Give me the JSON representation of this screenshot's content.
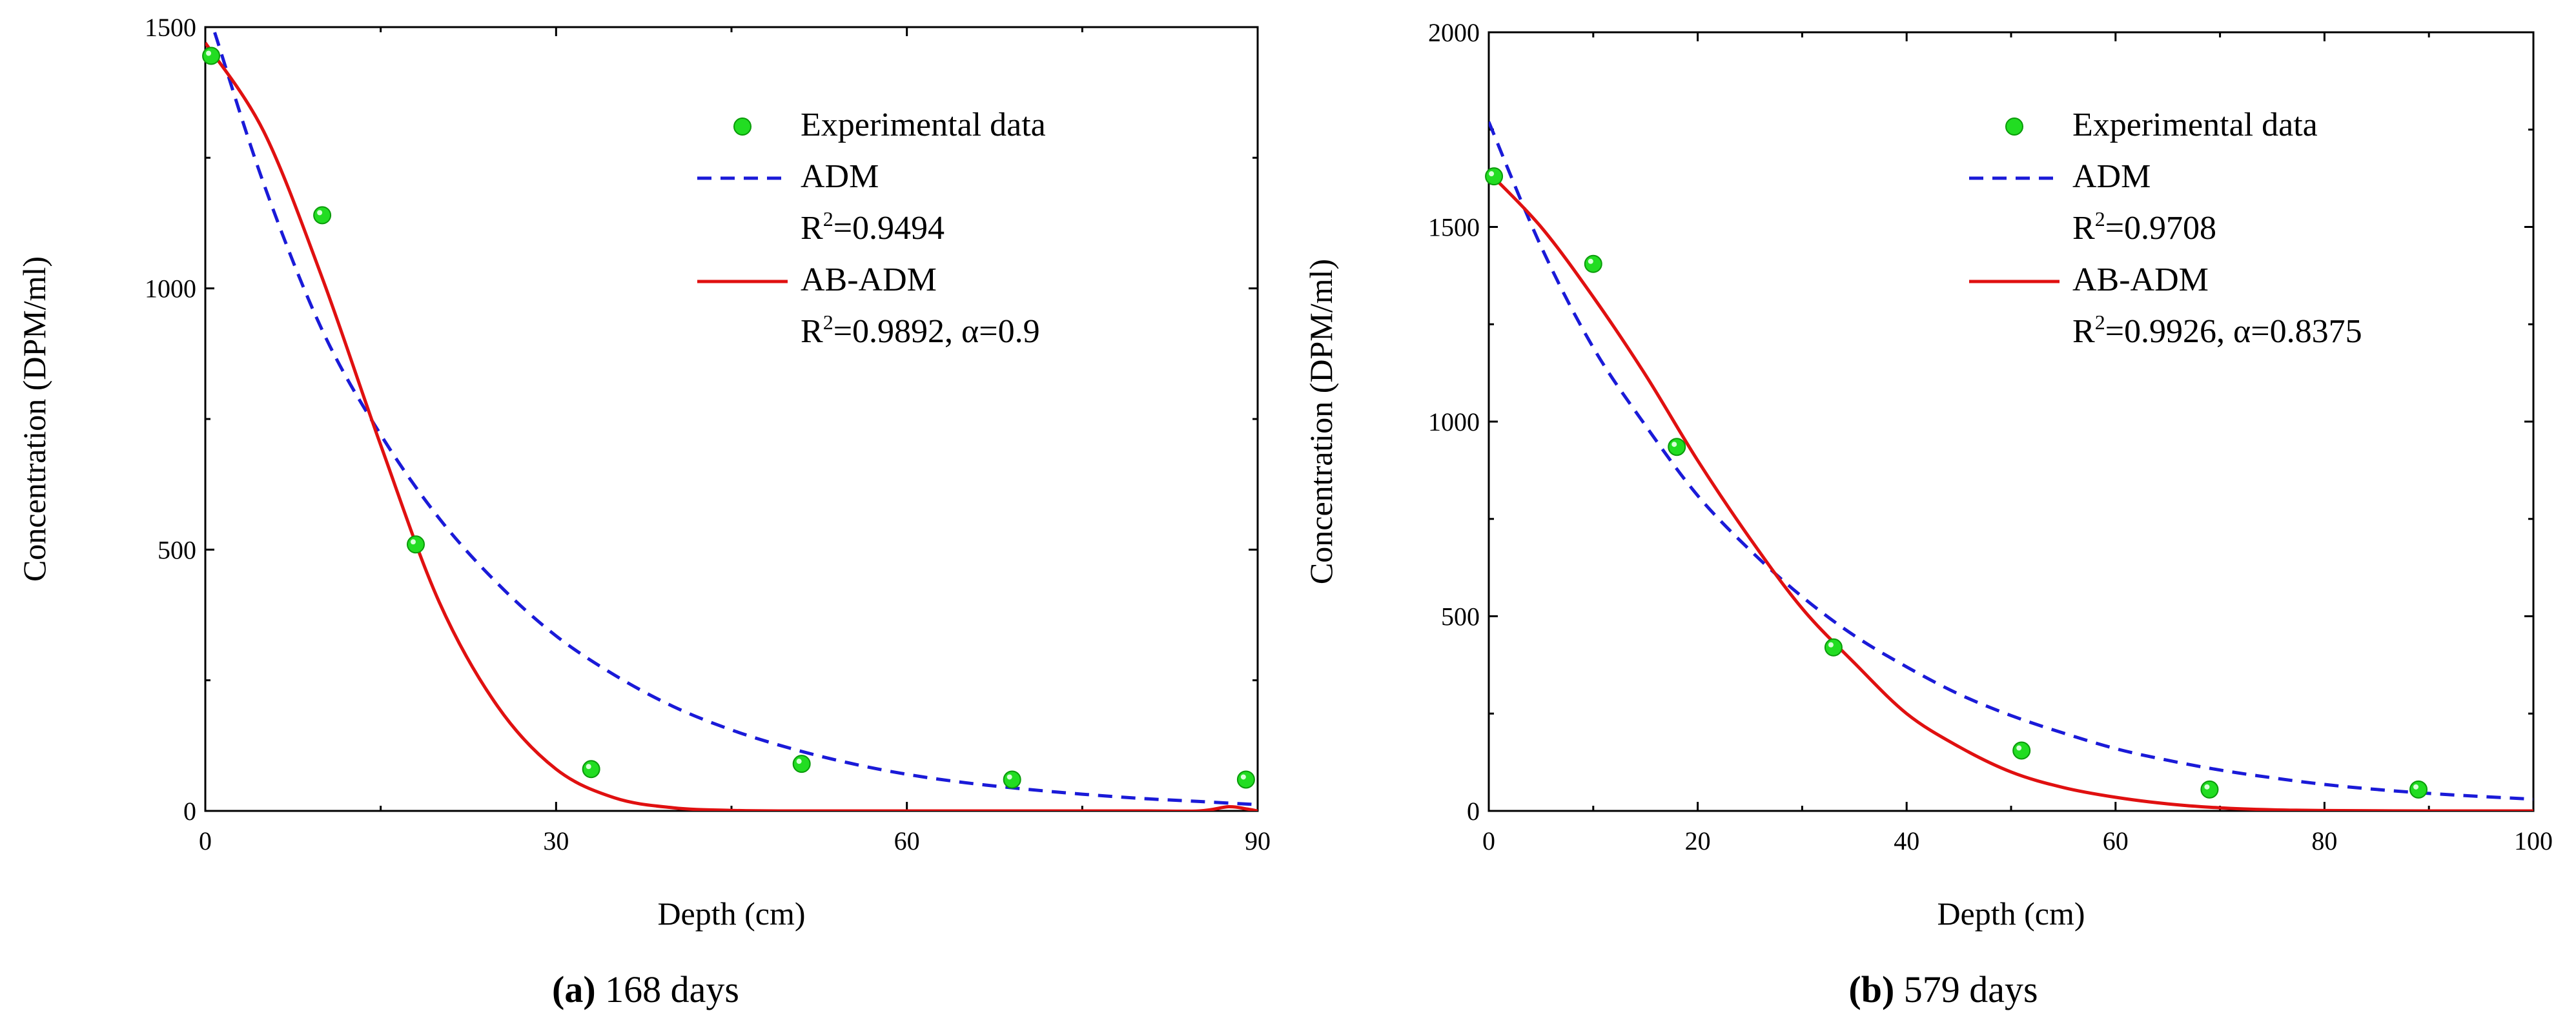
{
  "colors": {
    "experimental": "#22dd22",
    "experimental_edge": "#0a9a0a",
    "adm": "#1a1ad8",
    "abadm": "#e01010",
    "axis": "#000000"
  },
  "chart_data": [
    {
      "id": "a",
      "type": "scatter+line",
      "caption_label": "(a)",
      "caption_text": "168 days",
      "xlabel": "Depth (cm)",
      "ylabel": "Concentration (DPM/ml)",
      "xlim": [
        0,
        90
      ],
      "ylim": [
        0,
        1500
      ],
      "xticks": [
        0,
        30,
        60,
        90
      ],
      "yticks": [
        0,
        500,
        1000,
        1500
      ],
      "xtick_labels": [
        "0",
        "30",
        "60",
        "90"
      ],
      "ytick_labels": [
        "0",
        "500",
        "1000",
        "1500"
      ],
      "legend": {
        "experimental": "Experimental data",
        "adm": "ADM",
        "adm_r2_prefix": "R",
        "adm_r2_sup": "2",
        "adm_r2_value": "=0.9494",
        "abadm": "AB-ADM",
        "abadm_r2_prefix": "R",
        "abadm_r2_sup": "2",
        "abadm_r2_value": "=0.9892, α=0.9"
      },
      "experimental": {
        "x": [
          0.5,
          10,
          18,
          33,
          51,
          69,
          89
        ],
        "y": [
          1445,
          1140,
          510,
          80,
          90,
          60,
          60
        ]
      },
      "adm": {
        "x": [
          0.8,
          5,
          10,
          15,
          20,
          25,
          30,
          35,
          40,
          45,
          50,
          55,
          60,
          65,
          70,
          75,
          80,
          85,
          90
        ],
        "y": [
          1490,
          1200,
          920,
          720,
          560,
          435,
          335,
          260,
          200,
          155,
          120,
          92,
          70,
          54,
          42,
          32,
          24,
          18,
          12
        ]
      },
      "abadm": {
        "x": [
          0,
          5,
          10,
          15,
          20,
          25,
          30,
          35,
          40,
          45,
          50,
          60,
          70,
          80,
          85,
          87.5,
          89,
          90
        ],
        "y": [
          1470,
          1300,
          1020,
          700,
          400,
          200,
          80,
          25,
          6,
          1,
          0,
          0,
          0,
          0,
          0,
          8,
          4,
          0
        ]
      }
    },
    {
      "id": "b",
      "type": "scatter+line",
      "caption_label": "(b)",
      "caption_text": "579 days",
      "xlabel": "Depth (cm)",
      "ylabel": "Concentration (DPM/ml)",
      "xlim": [
        0,
        100
      ],
      "ylim": [
        0,
        2000
      ],
      "xticks": [
        0,
        20,
        40,
        60,
        80,
        100
      ],
      "yticks": [
        0,
        500,
        1000,
        1500,
        2000
      ],
      "xtick_labels": [
        "0",
        "20",
        "40",
        "60",
        "80",
        "100"
      ],
      "ytick_labels": [
        "0",
        "500",
        "1000",
        "1500",
        "2000"
      ],
      "legend": {
        "experimental": "Experimental data",
        "adm": "ADM",
        "adm_r2_prefix": "R",
        "adm_r2_sup": "2",
        "adm_r2_value": "=0.9708",
        "abadm": "AB-ADM",
        "abadm_r2_prefix": "R",
        "abadm_r2_sup": "2",
        "abadm_r2_value": "=0.9926, α=0.8375"
      },
      "experimental": {
        "x": [
          0.5,
          10,
          18,
          33,
          51,
          69,
          89
        ],
        "y": [
          1630,
          1405,
          935,
          420,
          155,
          55,
          55
        ]
      },
      "adm": {
        "x": [
          0,
          5,
          10,
          15,
          20,
          25,
          30,
          35,
          40,
          45,
          50,
          55,
          60,
          65,
          70,
          75,
          80,
          85,
          90,
          95,
          100
        ],
        "y": [
          1770,
          1450,
          1190,
          990,
          810,
          670,
          550,
          450,
          370,
          300,
          245,
          200,
          160,
          130,
          105,
          85,
          68,
          55,
          45,
          37,
          30
        ]
      },
      "abadm": {
        "x": [
          0,
          5,
          10,
          15,
          20,
          25,
          30,
          35,
          40,
          45,
          50,
          55,
          60,
          65,
          70,
          75,
          80,
          90,
          100
        ],
        "y": [
          1640,
          1500,
          1320,
          1120,
          900,
          700,
          520,
          380,
          250,
          165,
          100,
          60,
          35,
          18,
          8,
          3,
          1,
          0,
          0
        ]
      }
    }
  ]
}
